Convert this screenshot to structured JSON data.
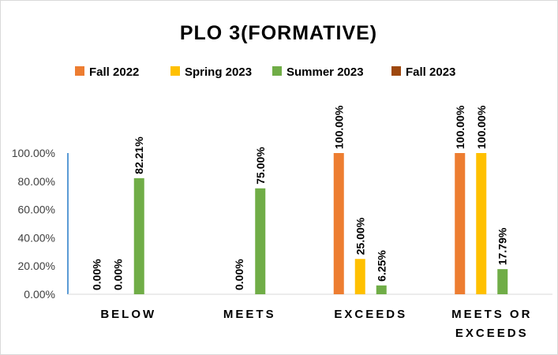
{
  "chart_data": {
    "type": "bar",
    "title": "PLO 3(FORMATIVE)",
    "categories": [
      [
        "BELOW"
      ],
      [
        "MEETS"
      ],
      [
        "EXCEEDS"
      ],
      [
        "MEETS OR",
        "EXCEEDS"
      ]
    ],
    "series": [
      {
        "name": "Fall 2022",
        "color": "#ED7D31",
        "values": [
          0,
          null,
          100,
          100
        ],
        "labels": [
          "0.00%",
          "",
          "100.00%",
          "100.00%"
        ]
      },
      {
        "name": "Spring 2023",
        "color": "#FFC000",
        "values": [
          0,
          0,
          25,
          100
        ],
        "labels": [
          "0.00%",
          "0.00%",
          "25.00%",
          "100.00%"
        ]
      },
      {
        "name": "Summer 2023",
        "color": "#70AD47",
        "values": [
          82.21,
          75,
          6.25,
          17.79
        ],
        "labels": [
          "82.21%",
          "75.00%",
          "6.25%",
          "17.79%"
        ]
      },
      {
        "name": "Fall 2023",
        "color": "#9E480E",
        "values": [
          null,
          null,
          null,
          null
        ],
        "labels": [
          "",
          "",
          "",
          ""
        ]
      }
    ],
    "ylim": [
      0,
      100
    ],
    "yticks": [
      0,
      20,
      40,
      60,
      80,
      100
    ],
    "ytick_labels": [
      "0.00%",
      "20.00%",
      "40.00%",
      "60.00%",
      "80.00%",
      "100.00%"
    ],
    "grid": false,
    "legend_position": "top",
    "axis_color": "#5B9BD5"
  }
}
